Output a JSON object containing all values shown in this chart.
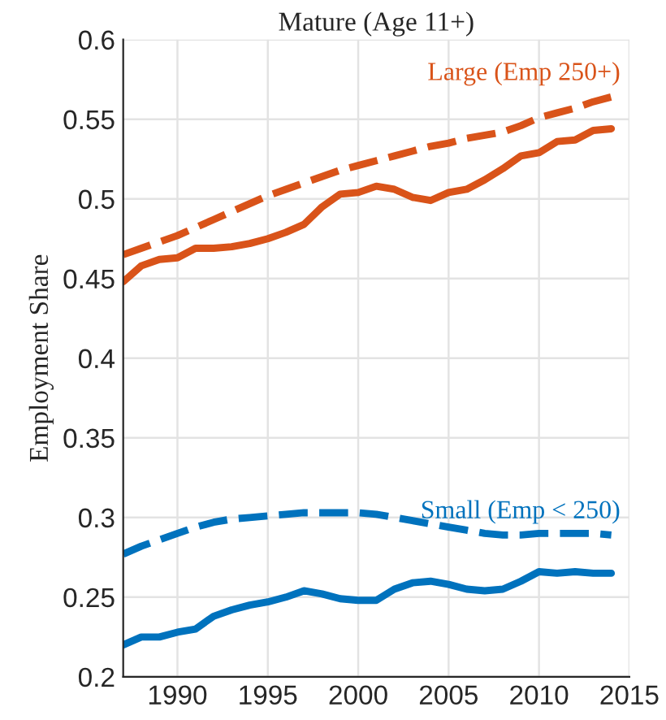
{
  "chart_data": {
    "type": "line",
    "title": "Mature (Age 11+)",
    "ylabel": "Employment Share",
    "x": [
      1987,
      1988,
      1989,
      1990,
      1991,
      1992,
      1993,
      1994,
      1995,
      1996,
      1997,
      1998,
      1999,
      2000,
      2001,
      2002,
      2003,
      2004,
      2005,
      2006,
      2007,
      2008,
      2009,
      2010,
      2011,
      2012,
      2013,
      2014
    ],
    "series": [
      {
        "color": "#d95319",
        "line_style": "solid",
        "values": [
          0.448,
          0.458,
          0.462,
          0.463,
          0.469,
          0.469,
          0.47,
          0.472,
          0.475,
          0.479,
          0.484,
          0.495,
          0.503,
          0.504,
          0.508,
          0.506,
          0.501,
          0.499,
          0.504,
          0.506,
          0.512,
          0.519,
          0.527,
          0.529,
          0.536,
          0.537,
          0.543,
          0.544
        ]
      },
      {
        "name": "Large (Emp 250+)",
        "color": "#d95319",
        "line_style": "dashed",
        "values": [
          0.465,
          0.469,
          0.473,
          0.477,
          0.482,
          0.487,
          0.492,
          0.497,
          0.502,
          0.506,
          0.51,
          0.514,
          0.518,
          0.521,
          0.524,
          0.527,
          0.53,
          0.533,
          0.535,
          0.538,
          0.54,
          0.542,
          0.546,
          0.551,
          0.554,
          0.557,
          0.561,
          0.564
        ]
      },
      {
        "color": "#0072bd",
        "line_style": "solid",
        "values": [
          0.22,
          0.225,
          0.225,
          0.228,
          0.23,
          0.238,
          0.242,
          0.245,
          0.247,
          0.25,
          0.254,
          0.252,
          0.249,
          0.248,
          0.248,
          0.255,
          0.259,
          0.26,
          0.258,
          0.255,
          0.254,
          0.255,
          0.26,
          0.266,
          0.265,
          0.266,
          0.265,
          0.265
        ]
      },
      {
        "name": "Small (Emp < 250)",
        "color": "#0072bd",
        "line_style": "dashed",
        "values": [
          0.277,
          0.282,
          0.286,
          0.29,
          0.294,
          0.297,
          0.299,
          0.3,
          0.301,
          0.302,
          0.303,
          0.303,
          0.303,
          0.303,
          0.302,
          0.3,
          0.298,
          0.296,
          0.294,
          0.292,
          0.29,
          0.289,
          0.289,
          0.29,
          0.29,
          0.29,
          0.29,
          0.289
        ]
      }
    ],
    "xlim": [
      1987,
      2015
    ],
    "xticks": [
      1990,
      1995,
      2000,
      2005,
      2010,
      2015
    ],
    "ylim": [
      0.2,
      0.6
    ],
    "yticks": [
      0.2,
      0.25,
      0.3,
      0.35,
      0.4,
      0.45,
      0.5,
      0.55,
      0.6
    ],
    "grid": true,
    "legend": false
  }
}
